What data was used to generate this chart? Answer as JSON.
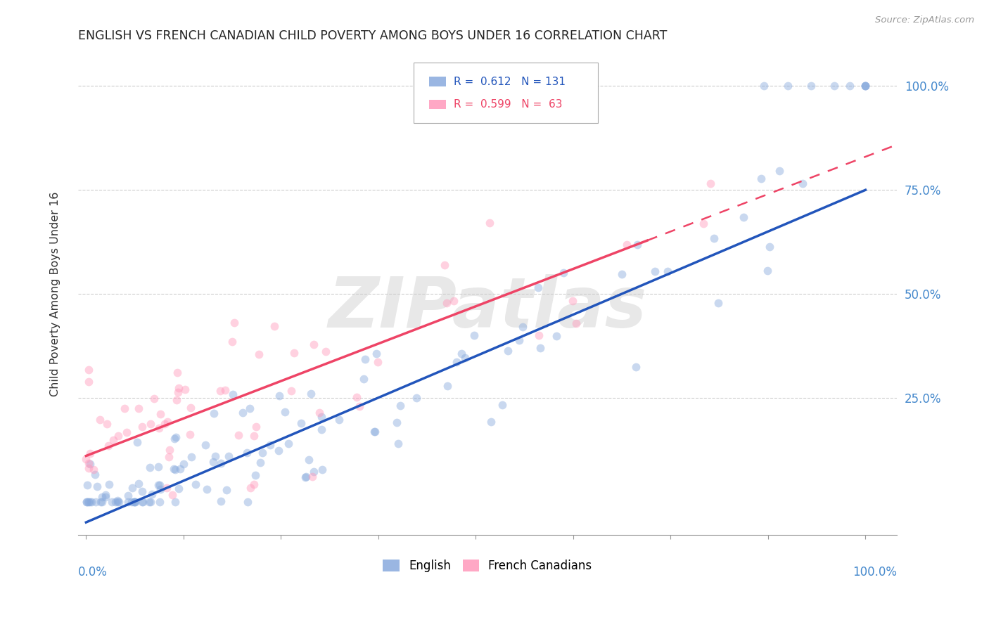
{
  "title": "ENGLISH VS FRENCH CANADIAN CHILD POVERTY AMONG BOYS UNDER 16 CORRELATION CHART",
  "source": "Source: ZipAtlas.com",
  "ylabel": "Child Poverty Among Boys Under 16",
  "english_R": 0.612,
  "english_N": 131,
  "french_R": 0.599,
  "french_N": 63,
  "english_color": "#88AADD",
  "french_color": "#FF99BB",
  "english_line_color": "#2255BB",
  "french_line_color": "#EE4466",
  "watermark": "ZIPatlas",
  "xlim": [
    -0.02,
    1.02
  ],
  "ylim": [
    -0.08,
    1.08
  ],
  "plot_xlim": [
    0.0,
    1.0
  ],
  "plot_ylim": [
    0.0,
    1.0
  ],
  "xtick_vals": [
    0.0,
    0.25,
    0.5,
    0.75,
    1.0
  ],
  "xtick_left_labels": [
    "0.0%",
    "",
    "",
    "",
    "100.0%"
  ],
  "ytick_vals": [
    0.25,
    0.5,
    0.75,
    1.0
  ],
  "ytick_labels": [
    "25.0%",
    "50.0%",
    "75.0%",
    "100.0%"
  ],
  "marker_size": 72,
  "marker_alpha": 0.45,
  "bg_color": "#FFFFFF",
  "grid_color": "#CCCCCC",
  "legend_english_label": "English",
  "legend_french_label": "French Canadians",
  "english_line_intercept": -0.05,
  "english_line_slope": 0.8,
  "french_line_intercept": 0.11,
  "french_line_slope": 0.72
}
